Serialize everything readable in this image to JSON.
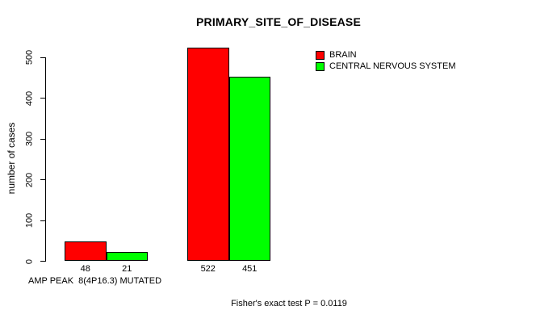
{
  "chart_data": {
    "type": "bar",
    "title": "PRIMARY_SITE_OF_DISEASE",
    "ylabel": "number of cases",
    "xlabel": "AMP PEAK  8(4P16.3) MUTATED",
    "footnote": "Fisher's exact test P = 0.0119",
    "series": [
      {
        "name": "BRAIN",
        "color": "#ff0000",
        "values": [
          48,
          522
        ]
      },
      {
        "name": "CENTRAL NERVOUS SYSTEM",
        "color": "#00ff00",
        "values": [
          21,
          451
        ]
      }
    ],
    "bar_value_labels": [
      [
        "48",
        "21"
      ],
      [
        "522",
        "451"
      ]
    ],
    "yticks": [
      0,
      100,
      200,
      300,
      400,
      500
    ],
    "ylim": [
      0,
      540
    ],
    "grid": false,
    "legend_position": "top-right",
    "colors": {
      "bar_border": "#000000",
      "axis": "#000000",
      "background": "#ffffff"
    }
  }
}
